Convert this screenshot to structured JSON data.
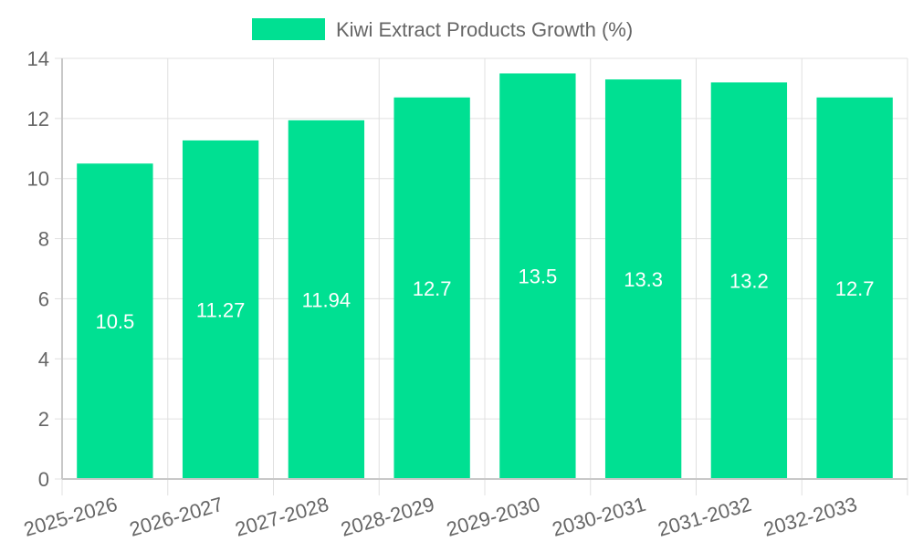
{
  "chart_data": {
    "type": "bar",
    "categories": [
      "2025-2026",
      "2026-2027",
      "2027-2028",
      "2028-2029",
      "2029-2030",
      "2030-2031",
      "2031-2032",
      "2032-2033"
    ],
    "series": [
      {
        "name": "Kiwi Extract Products Growth (%)",
        "values": [
          10.5,
          11.27,
          11.94,
          12.7,
          13.5,
          13.3,
          13.2,
          12.7
        ],
        "color": "#00e092"
      }
    ],
    "ylim": [
      0,
      14
    ],
    "y_ticks": [
      0,
      2,
      4,
      6,
      8,
      10,
      12,
      14
    ],
    "data_labels": [
      "10.5",
      "11.27",
      "11.94",
      "12.7",
      "13.5",
      "13.3",
      "13.2",
      "12.7"
    ],
    "grid": true,
    "legend_position": "top-center",
    "bar_label_color": "#ffffff"
  }
}
